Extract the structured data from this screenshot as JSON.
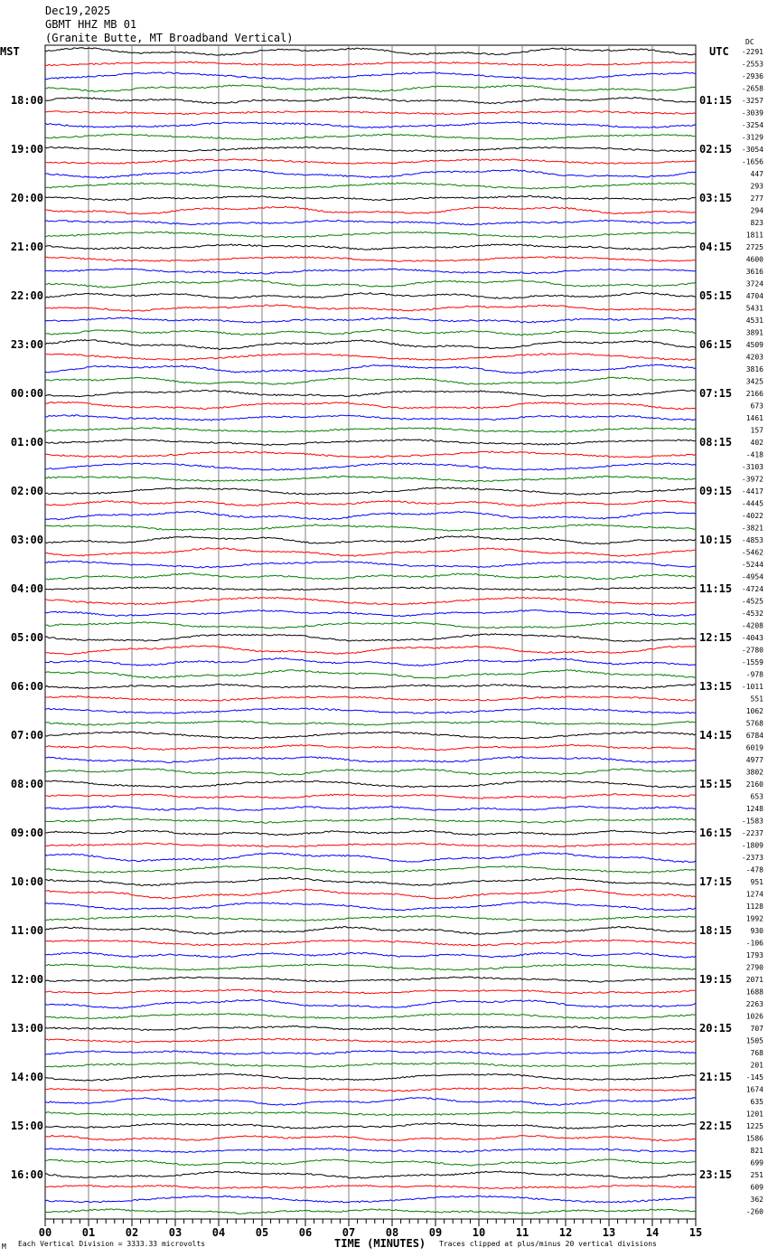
{
  "chart_data": {
    "type": "line",
    "title_lines": [
      "Dec19,2025",
      "GBMT HHZ MB 01",
      "(Granite Butte, MT Broadband Vertical)"
    ],
    "left_axis_label": "MST",
    "right_axis_label": "UTC",
    "dc_label": "DC",
    "left_hour_labels": [
      "18:00",
      "19:00",
      "20:00",
      "21:00",
      "22:00",
      "23:00",
      "00:00",
      "01:00",
      "02:00",
      "03:00",
      "04:00",
      "05:00",
      "06:00",
      "07:00",
      "08:00",
      "09:00",
      "10:00",
      "11:00",
      "12:00",
      "13:00",
      "14:00",
      "15:00",
      "16:00"
    ],
    "right_hour_labels": [
      "01:15",
      "02:15",
      "03:15",
      "04:15",
      "05:15",
      "06:15",
      "07:15",
      "08:15",
      "09:15",
      "10:15",
      "11:15",
      "12:15",
      "13:15",
      "14:15",
      "15:15",
      "16:15",
      "17:15",
      "18:15",
      "19:15",
      "20:15",
      "21:15",
      "22:15",
      "23:15"
    ],
    "trace_dc_values": [
      -2291,
      -2553,
      -2936,
      -2658,
      -3257,
      -3039,
      -3254,
      -3129,
      -3054,
      -1656,
      447,
      293,
      277,
      294,
      823,
      1811,
      2725,
      4600,
      3616,
      3724,
      4704,
      5431,
      4531,
      3891,
      4509,
      4203,
      3816,
      3425,
      2166,
      673,
      1461,
      157,
      402,
      -418,
      -3103,
      -3972,
      -4417,
      -4445,
      -4022,
      -3821,
      -4853,
      -5462,
      -5244,
      -4954,
      -4724,
      -4525,
      -4532,
      -4208,
      -4043,
      -2780,
      -1559,
      -978,
      -1011,
      551,
      1062,
      5768,
      6784,
      6019,
      4977,
      3802,
      2160,
      653,
      1248,
      -1583,
      -2237,
      -1809,
      -2373,
      -478,
      951,
      1274,
      1128,
      1992,
      930,
      -106,
      1793,
      2790,
      2071,
      1688,
      2263,
      1026,
      707,
      1505,
      768,
      201,
      -145,
      1674,
      635,
      1201,
      1225,
      1586,
      821,
      699,
      251,
      609,
      362,
      -260
    ],
    "trace_colors": [
      "#000000",
      "#ff0000",
      "#0000ff",
      "#008000"
    ],
    "x_ticks": [
      "00",
      "01",
      "02",
      "03",
      "04",
      "05",
      "06",
      "07",
      "08",
      "09",
      "10",
      "11",
      "12",
      "13",
      "14",
      "15"
    ],
    "xlim": [
      0,
      15
    ],
    "xlabel": "TIME (MINUTES)",
    "grid": true,
    "footer_left": "Each Vertical Division = 3333.33 microvolts",
    "footer_right": "Traces clipped at plus/minus 20 vertical divisions",
    "corner_mark": "M"
  }
}
